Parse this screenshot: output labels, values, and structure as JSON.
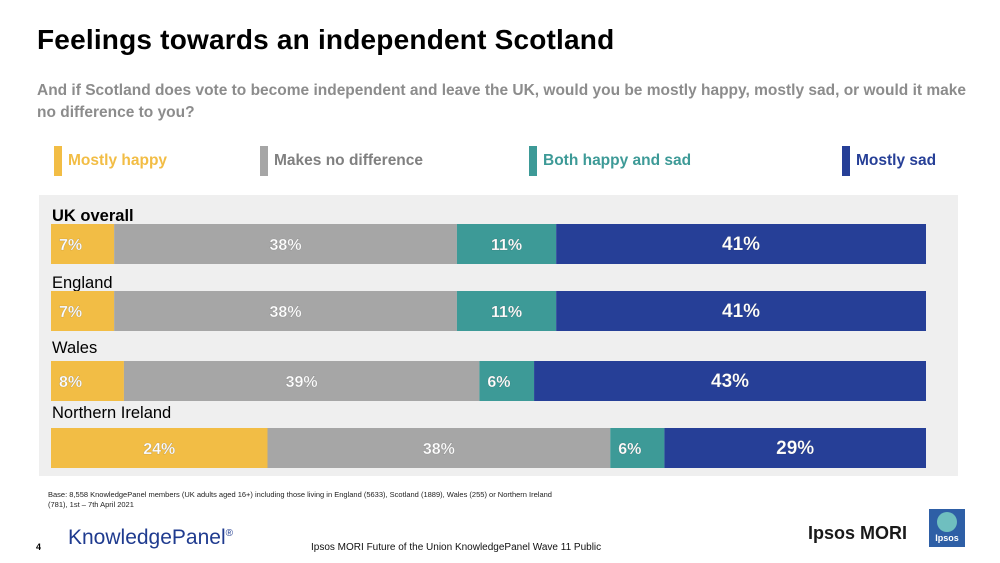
{
  "slide": {
    "title": "Feelings towards an independent Scotland",
    "question": "And if Scotland does vote to become independent and leave the UK, would you be mostly happy, mostly sad, or would it make no difference to you?",
    "page_number": "4",
    "footnote": "Base: 8,558 KnowledgePanel members (UK adults aged 16+) including those living in England (5633), Scotland (1889), Wales (255) or Northern Ireland (781), 1st – 7th April 2021",
    "footer_center": "Ipsos MORI Future of the Union KnowledgePanel Wave 11 Public",
    "knowledgepanel_logo": "KnowledgePanel",
    "knowledgepanel_reg": "®",
    "ipsos_logo_text": "Ipsos MORI",
    "ipsos_badge_text": "Ipsos"
  },
  "legend": [
    {
      "label": "Mostly happy",
      "color": "#f2bd45"
    },
    {
      "label": "Makes no difference",
      "color": "#a6a6a6"
    },
    {
      "label": "Both happy and sad",
      "color": "#3d9a97"
    },
    {
      "label": "Mostly sad",
      "color": "#263f97"
    }
  ],
  "chart_data": {
    "type": "bar",
    "orientation": "horizontal",
    "stacked": true,
    "categories": [
      "UK overall",
      "England",
      "Wales",
      "Northern Ireland"
    ],
    "series": [
      {
        "name": "Mostly happy",
        "values": [
          7,
          7,
          8,
          24
        ],
        "labels": [
          "7%",
          "7%",
          "8%",
          "24%"
        ],
        "color": "#f2bd45"
      },
      {
        "name": "Makes no difference",
        "values": [
          38,
          38,
          39,
          38
        ],
        "labels": [
          "38%",
          "38%",
          "39%",
          "38%"
        ],
        "color": "#a6a6a6"
      },
      {
        "name": "Both happy and sad",
        "values": [
          11,
          11,
          6,
          6
        ],
        "labels": [
          "11%",
          "11%",
          "6%",
          "6%"
        ],
        "color": "#3d9a97"
      },
      {
        "name": "Mostly sad",
        "values": [
          41,
          41,
          43,
          29
        ],
        "labels": [
          "41%",
          "41%",
          "43%",
          "29%"
        ],
        "color": "#263f97"
      }
    ],
    "legend_position": "top",
    "grid": false
  }
}
